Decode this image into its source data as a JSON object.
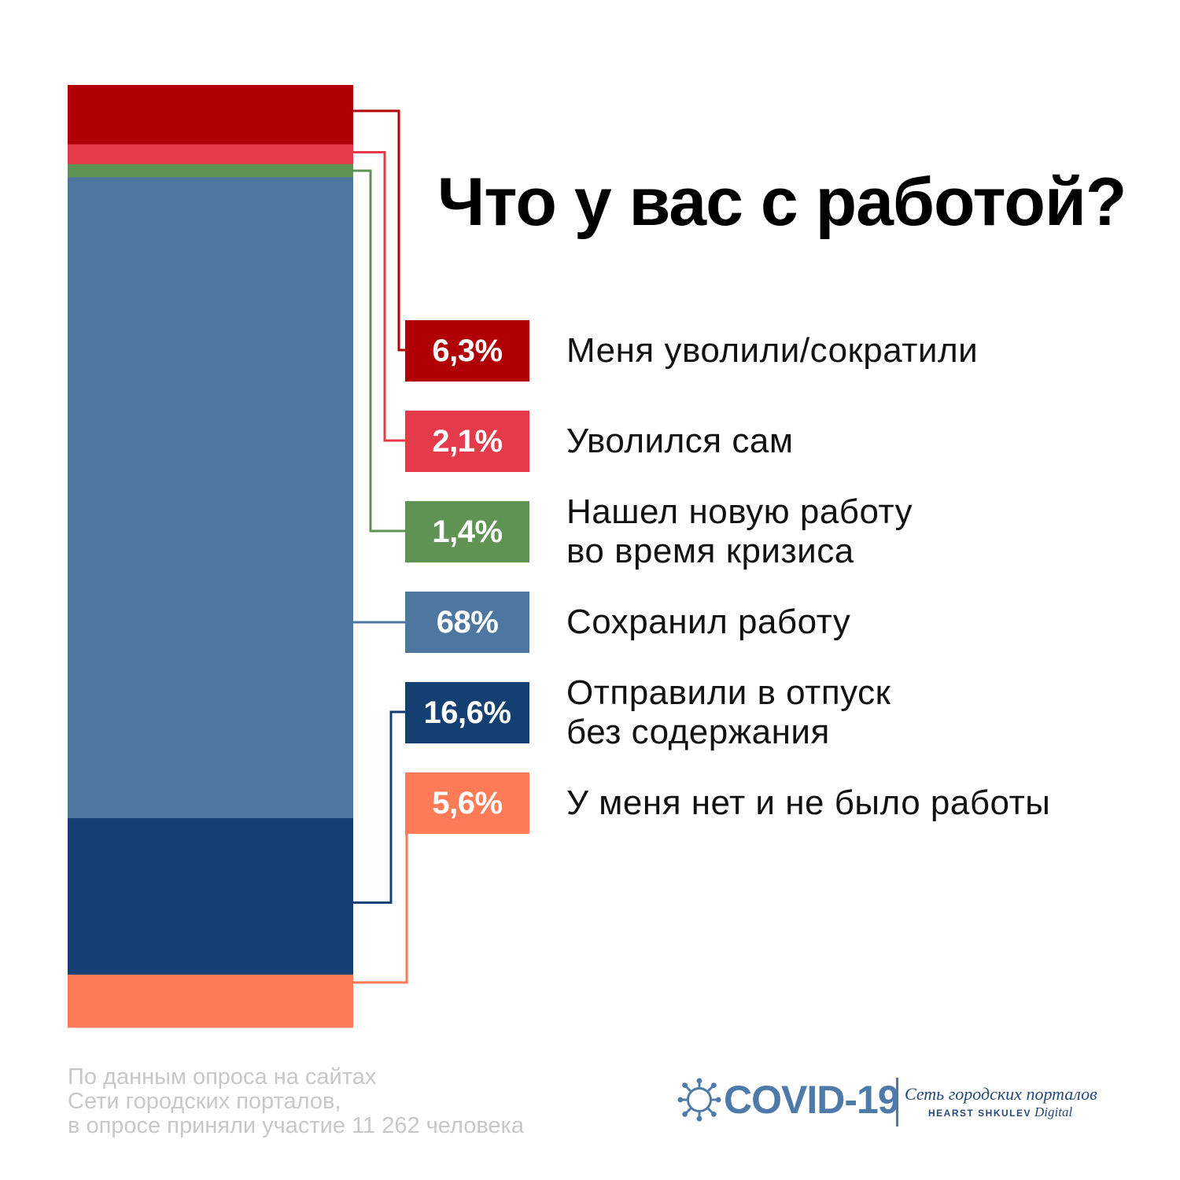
{
  "chart_data": {
    "type": "bar",
    "stacked": true,
    "title": "Что у вас с работой?",
    "unit": "%",
    "series": [
      {
        "name": "Меня уволили/сократили",
        "value": 6.3,
        "label": "6,3%",
        "color": "#b00006"
      },
      {
        "name": "Уволился сам",
        "value": 2.1,
        "label": "2,1%",
        "color": "#e53a4a"
      },
      {
        "name": "Нашел новую работу\nво время кризиса",
        "value": 1.4,
        "label": "1,4%",
        "color": "#5f9353"
      },
      {
        "name": "Сохранил работу",
        "value": 68,
        "label": "68%",
        "color": "#4d77a0"
      },
      {
        "name": "Отправили в отпуск\nбез содержания",
        "value": 16.6,
        "label": "16,6%",
        "color": "#133f72"
      },
      {
        "name": "У меня нет и не было работы",
        "value": 5.6,
        "label": "5,6%",
        "color": "#ff7b57"
      }
    ]
  },
  "footnote": [
    "По данным опроса на сайтах",
    "Сети городских порталов,",
    "в опросе приняли участие 11 262 человека"
  ],
  "logo": {
    "covid": "COVID-19",
    "network": "Сеть городских порталов",
    "hearst": "HEARST SHKULEV",
    "digital": "Digital"
  }
}
